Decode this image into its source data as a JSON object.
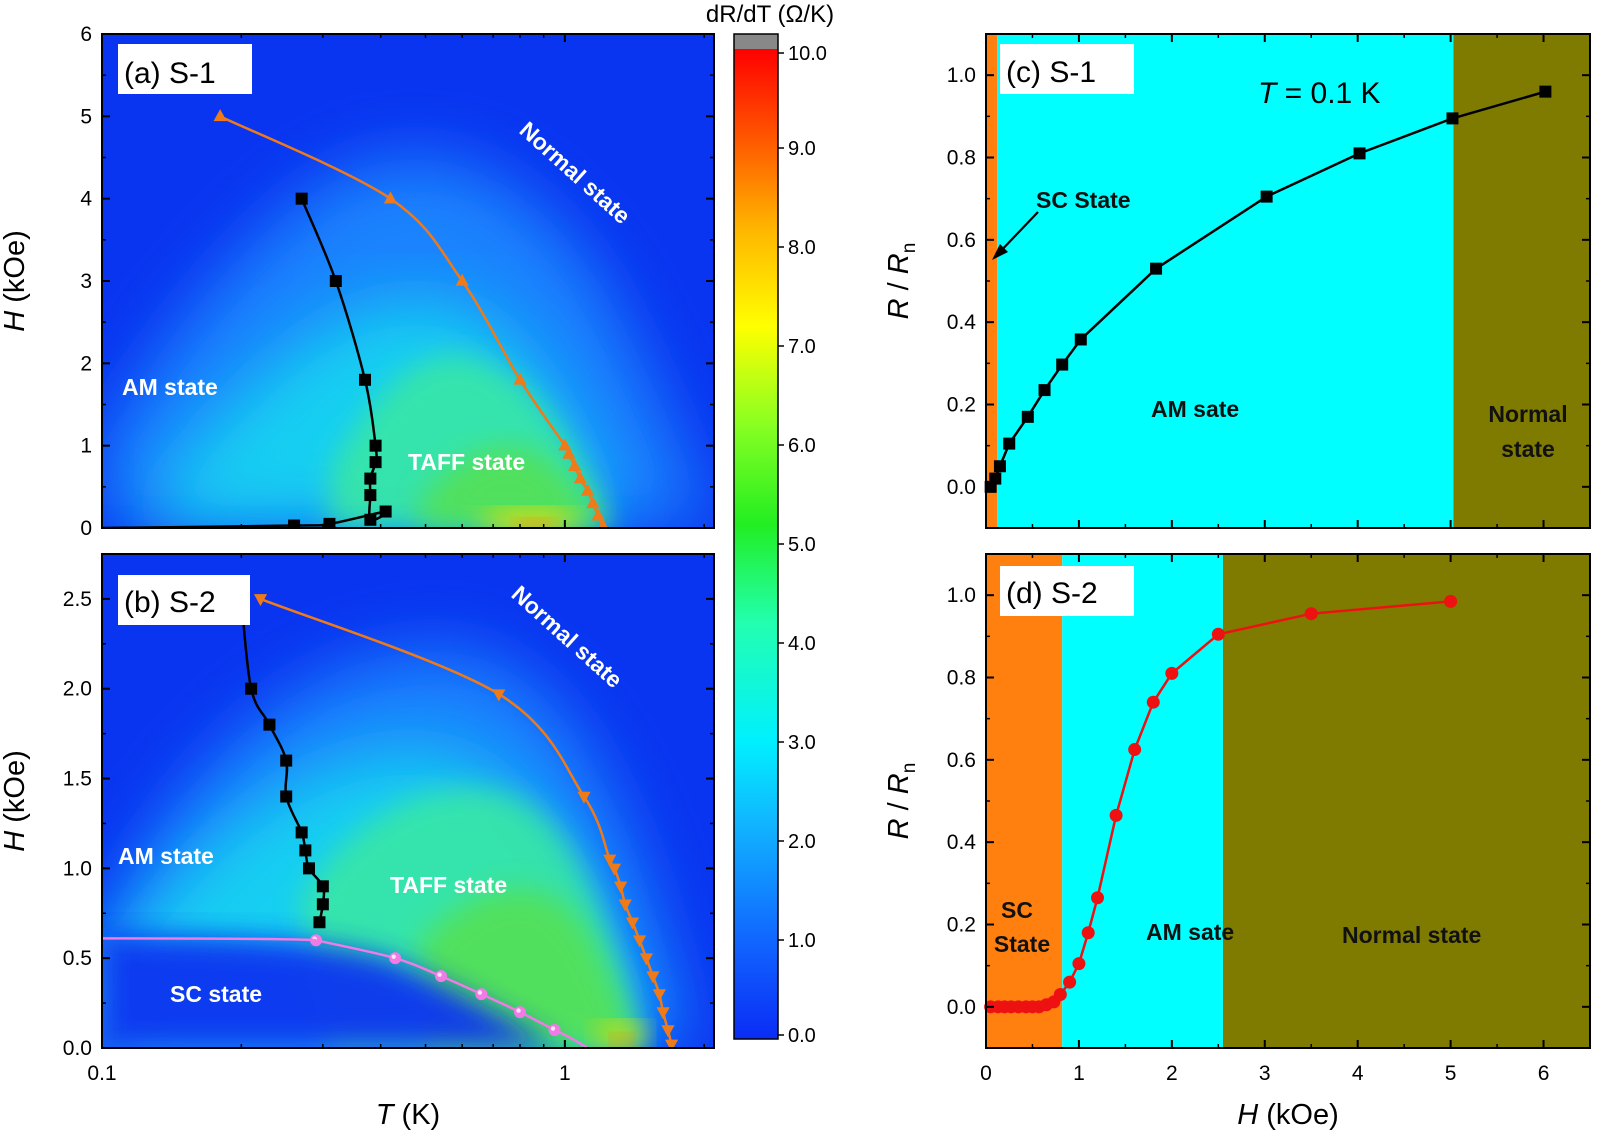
{
  "colors": {
    "map_bg": "#0a35f0",
    "orange": "#ef7a1a",
    "black": "#000000",
    "pink": "#f07ae6",
    "red": "#ee1111",
    "cyan": "#00ffff",
    "olive": "#7f7a00",
    "sc_orange": "#ff7f0f"
  },
  "colorbar": {
    "title": "dR/dT (Ω/K)",
    "ticks": [
      "10.0",
      "9.0",
      "8.0",
      "7.0",
      "6.0",
      "5.0",
      "4.0",
      "3.0",
      "2.0",
      "1.0",
      "0.0"
    ]
  },
  "chart_data": [
    {
      "id": "a",
      "type": "heatmap",
      "panel_label": "(a) S-1",
      "xlabel": "",
      "ylabel_italic": "H",
      "ylabel_rest": " (kOe)",
      "xscale": "log",
      "xlim": [
        0.1,
        2.1
      ],
      "ylim": [
        0,
        6
      ],
      "yticks": [
        "0",
        "1",
        "2",
        "3",
        "4",
        "5",
        "6"
      ],
      "annotations": [
        "Normal state",
        "AM state",
        "TAFF state"
      ],
      "series": [
        {
          "marker": "triangle-up",
          "color": "orange",
          "points": [
            [
              0.18,
              5.0
            ],
            [
              0.42,
              4.0
            ],
            [
              0.6,
              3.0
            ],
            [
              0.8,
              1.8
            ],
            [
              1.0,
              1.0
            ],
            [
              1.02,
              0.9
            ],
            [
              1.05,
              0.75
            ],
            [
              1.08,
              0.6
            ],
            [
              1.12,
              0.45
            ],
            [
              1.15,
              0.3
            ],
            [
              1.18,
              0.15
            ],
            [
              1.21,
              0.02
            ]
          ]
        },
        {
          "marker": "square",
          "color": "black",
          "points": [
            [
              0.27,
              4.0
            ],
            [
              0.32,
              3.0
            ],
            [
              0.37,
              1.8
            ],
            [
              0.39,
              1.0
            ],
            [
              0.39,
              0.8
            ],
            [
              0.38,
              0.6
            ],
            [
              0.38,
              0.4
            ],
            [
              0.38,
              0.1
            ],
            [
              0.41,
              0.2
            ],
            [
              0.31,
              0.05
            ],
            [
              0.26,
              0.03
            ],
            [
              0.1,
              0.0
            ]
          ]
        }
      ]
    },
    {
      "id": "b",
      "type": "heatmap",
      "panel_label": "(b) S-2",
      "xlabel_italic": "T",
      "xlabel_rest": " (K)",
      "ylabel_italic": "H",
      "ylabel_rest": " (kOe)",
      "xscale": "log",
      "xlim": [
        0.1,
        2.1
      ],
      "xticks": [
        "0.1",
        "1"
      ],
      "ylim": [
        0,
        2.75
      ],
      "yticks": [
        "0.0",
        "0.5",
        "1.0",
        "1.5",
        "2.0",
        "2.5"
      ],
      "annotations": [
        "Normal state",
        "AM state",
        "TAFF state",
        "SC state"
      ],
      "series": [
        {
          "marker": "triangle-down",
          "color": "orange",
          "points": [
            [
              0.22,
              2.5
            ],
            [
              0.72,
              1.97
            ],
            [
              1.1,
              1.4
            ],
            [
              1.25,
              1.05
            ],
            [
              1.28,
              1.0
            ],
            [
              1.32,
              0.9
            ],
            [
              1.35,
              0.8
            ],
            [
              1.4,
              0.7
            ],
            [
              1.45,
              0.6
            ],
            [
              1.5,
              0.5
            ],
            [
              1.55,
              0.4
            ],
            [
              1.6,
              0.3
            ],
            [
              1.63,
              0.2
            ],
            [
              1.67,
              0.1
            ],
            [
              1.7,
              0.02
            ]
          ]
        },
        {
          "marker": "square",
          "color": "black",
          "points": [
            [
              0.2,
              2.5
            ],
            [
              0.21,
              2.0
            ],
            [
              0.23,
              1.8
            ],
            [
              0.25,
              1.6
            ],
            [
              0.25,
              1.4
            ],
            [
              0.27,
              1.2
            ],
            [
              0.275,
              1.1
            ],
            [
              0.28,
              1.0
            ],
            [
              0.3,
              0.9
            ],
            [
              0.3,
              0.8
            ],
            [
              0.295,
              0.7
            ]
          ]
        },
        {
          "marker": "circle",
          "color": "pink",
          "points": [
            [
              0.29,
              0.6
            ],
            [
              0.43,
              0.5
            ],
            [
              0.54,
              0.4
            ],
            [
              0.66,
              0.3
            ],
            [
              0.8,
              0.2
            ],
            [
              0.95,
              0.1
            ]
          ]
        }
      ]
    },
    {
      "id": "c",
      "type": "line",
      "panel_label": "(c) S-1",
      "ylabel_italic": "R",
      "ylabel_rest": " / ",
      "ylabel_italic2": "R",
      "ylabel_sub": "n",
      "xlim": [
        0,
        6.5
      ],
      "ylim": [
        -0.1,
        1.1
      ],
      "yticks": [
        "0.0",
        "0.2",
        "0.4",
        "0.6",
        "0.8",
        "1.0"
      ],
      "temperature_italic": "T",
      "temperature_rest": " = 0.1 K",
      "annotations": [
        "SC State",
        "AM sate",
        "Normal",
        "state"
      ],
      "regions": [
        {
          "x0": 0.0,
          "x1": 0.12,
          "color": "sc_orange"
        },
        {
          "x0": 0.12,
          "x1": 5.03,
          "color": "cyan"
        },
        {
          "x0": 5.03,
          "x1": 6.5,
          "color": "olive"
        }
      ],
      "series": [
        {
          "marker": "square",
          "color": "black",
          "points": [
            [
              0.05,
              0.0
            ],
            [
              0.1,
              0.02
            ],
            [
              0.15,
              0.05
            ],
            [
              0.25,
              0.105
            ],
            [
              0.45,
              0.17
            ],
            [
              0.63,
              0.235
            ],
            [
              0.82,
              0.297
            ],
            [
              1.02,
              0.358
            ],
            [
              1.83,
              0.53
            ],
            [
              3.02,
              0.705
            ],
            [
              4.02,
              0.81
            ],
            [
              5.02,
              0.895
            ],
            [
              6.02,
              0.96
            ]
          ]
        }
      ]
    },
    {
      "id": "d",
      "type": "line",
      "panel_label": "(d) S-2",
      "xlabel_italic": "H",
      "xlabel_rest": " (kOe)",
      "xticks": [
        "0",
        "1",
        "2",
        "3",
        "4",
        "5",
        "6"
      ],
      "ylabel_italic": "R",
      "ylabel_rest": " / ",
      "ylabel_italic2": "R",
      "ylabel_sub": "n",
      "xlim": [
        0,
        6.5
      ],
      "ylim": [
        -0.1,
        1.1
      ],
      "yticks": [
        "0.0",
        "0.2",
        "0.4",
        "0.6",
        "0.8",
        "1.0"
      ],
      "annotations": [
        "SC",
        "State",
        "AM sate",
        "Normal state"
      ],
      "regions": [
        {
          "x0": 0.0,
          "x1": 0.82,
          "color": "sc_orange"
        },
        {
          "x0": 0.82,
          "x1": 2.55,
          "color": "cyan"
        },
        {
          "x0": 2.55,
          "x1": 6.5,
          "color": "olive"
        }
      ],
      "series": [
        {
          "marker": "circle",
          "color": "red",
          "points": [
            [
              0.05,
              0.0
            ],
            [
              0.13,
              0.0
            ],
            [
              0.2,
              0.0
            ],
            [
              0.27,
              0.0
            ],
            [
              0.35,
              0.0
            ],
            [
              0.43,
              0.0
            ],
            [
              0.5,
              0.0
            ],
            [
              0.57,
              0.0
            ],
            [
              0.65,
              0.005
            ],
            [
              0.73,
              0.012
            ],
            [
              0.8,
              0.03
            ],
            [
              0.9,
              0.06
            ],
            [
              1.0,
              0.105
            ],
            [
              1.1,
              0.18
            ],
            [
              1.2,
              0.265
            ],
            [
              1.4,
              0.465
            ],
            [
              1.6,
              0.625
            ],
            [
              1.8,
              0.74
            ],
            [
              2.0,
              0.81
            ],
            [
              2.5,
              0.905
            ],
            [
              3.5,
              0.955
            ],
            [
              5.0,
              0.985
            ]
          ]
        }
      ]
    }
  ]
}
